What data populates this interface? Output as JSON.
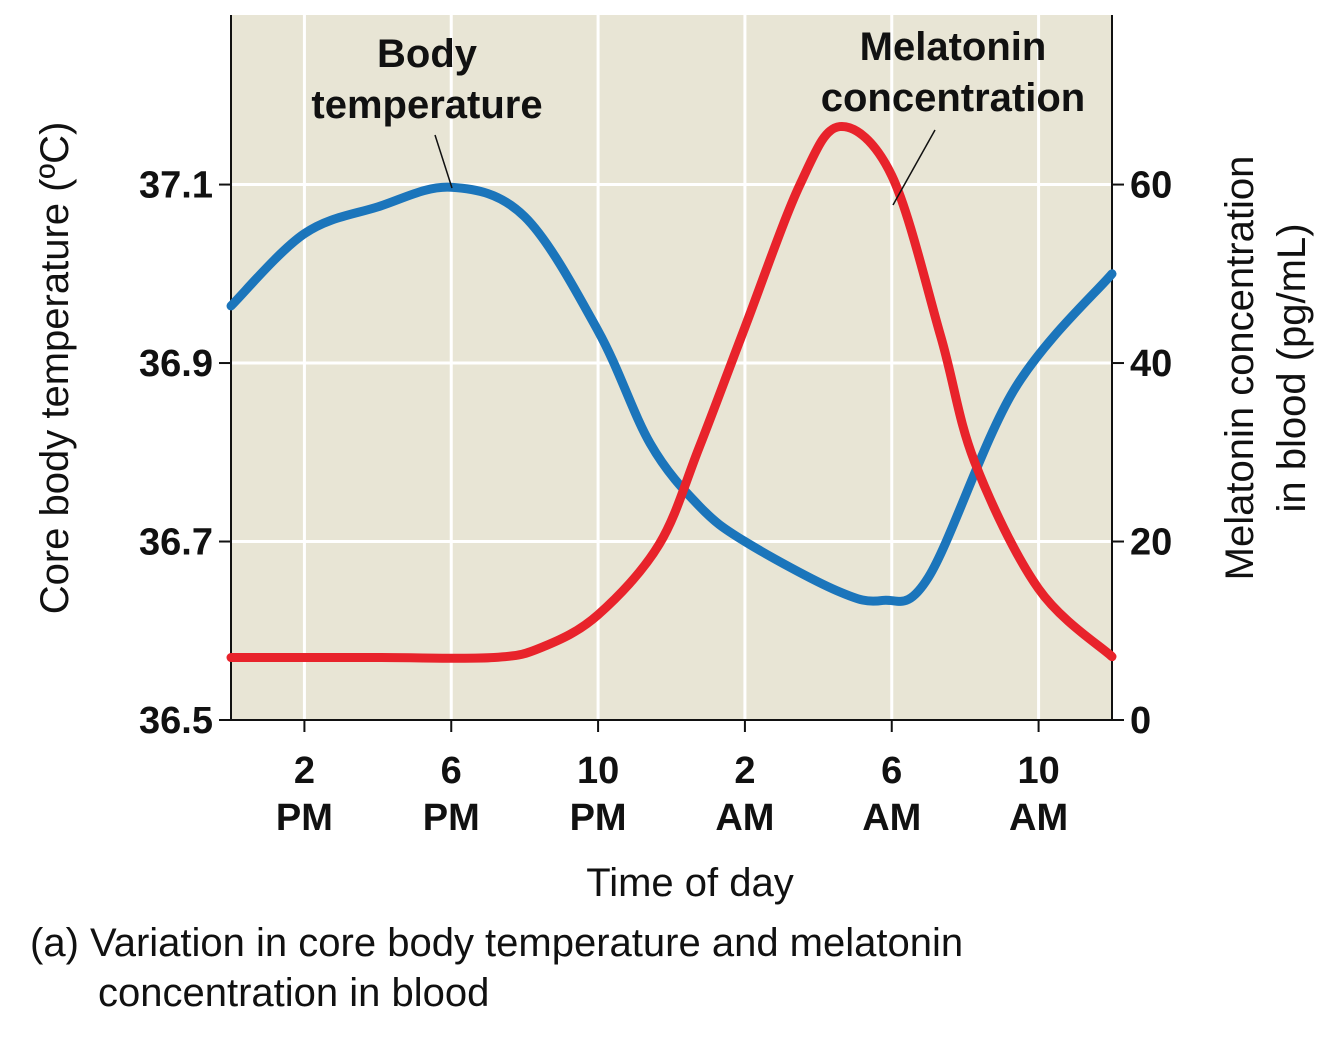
{
  "chart_data": {
    "type": "line",
    "caption_label": "(a)",
    "caption_line1": "Variation in core body temperature and melatonin",
    "caption_line2": "concentration in blood",
    "xlabel": "Time of day",
    "ylabel_left": "Core body temperature (ºC)",
    "ylabel_right_line1": "Melatonin concentration",
    "ylabel_right_line2": "in blood (pg/mL)",
    "x_range": [
      "12:00",
      "12:00 next day"
    ],
    "x_ticks": [
      {
        "time": "14:00",
        "line1": "2",
        "line2": "PM"
      },
      {
        "time": "18:00",
        "line1": "6",
        "line2": "PM"
      },
      {
        "time": "22:00",
        "line1": "10",
        "line2": "PM"
      },
      {
        "time": "02:00",
        "line1": "2",
        "line2": "AM"
      },
      {
        "time": "06:00",
        "line1": "6",
        "line2": "AM"
      },
      {
        "time": "10:00",
        "line1": "10",
        "line2": "AM"
      }
    ],
    "y_left": {
      "range": [
        36.5,
        37.29
      ],
      "ticks": [
        "36.5",
        "36.7",
        "36.9",
        "37.1"
      ]
    },
    "y_right": {
      "range": [
        0,
        79
      ],
      "ticks": [
        "0",
        "20",
        "40",
        "60"
      ]
    },
    "grid": true,
    "background": "#e8e5d5",
    "series": [
      {
        "name": "Body temperature",
        "label_line1": "Body",
        "label_line2": "temperature",
        "axis": "left",
        "color": "#1b75bb",
        "points": [
          [
            "12:00",
            36.964
          ],
          [
            "14:00",
            37.045
          ],
          [
            "16:00",
            37.075
          ],
          [
            "18:00",
            37.097
          ],
          [
            "20:00",
            37.064
          ],
          [
            "22:00",
            36.936
          ],
          [
            "23:25",
            36.81
          ],
          [
            "00:45",
            36.74
          ],
          [
            "02:00",
            36.7
          ],
          [
            "04:30",
            36.645
          ],
          [
            "05:45",
            36.634
          ],
          [
            "07:00",
            36.66
          ],
          [
            "09:20",
            36.87
          ],
          [
            "12:00",
            37.0
          ]
        ]
      },
      {
        "name": "Melatonin concentration",
        "label_line1": "Melatonin",
        "label_line2": "concentration",
        "axis": "right",
        "color": "#e8232b",
        "points": [
          [
            "12:00",
            7
          ],
          [
            "16:00",
            7
          ],
          [
            "19:10",
            7
          ],
          [
            "20:30",
            8.2
          ],
          [
            "22:00",
            11.8
          ],
          [
            "23:40",
            19.7
          ],
          [
            "00:45",
            30.5
          ],
          [
            "02:00",
            44
          ],
          [
            "03:30",
            60
          ],
          [
            "04:35",
            66.5
          ],
          [
            "06:00",
            61
          ],
          [
            "07:20",
            43
          ],
          [
            "08:15",
            29
          ],
          [
            "10:00",
            14.7
          ],
          [
            "12:00",
            7.1
          ]
        ]
      }
    ]
  }
}
